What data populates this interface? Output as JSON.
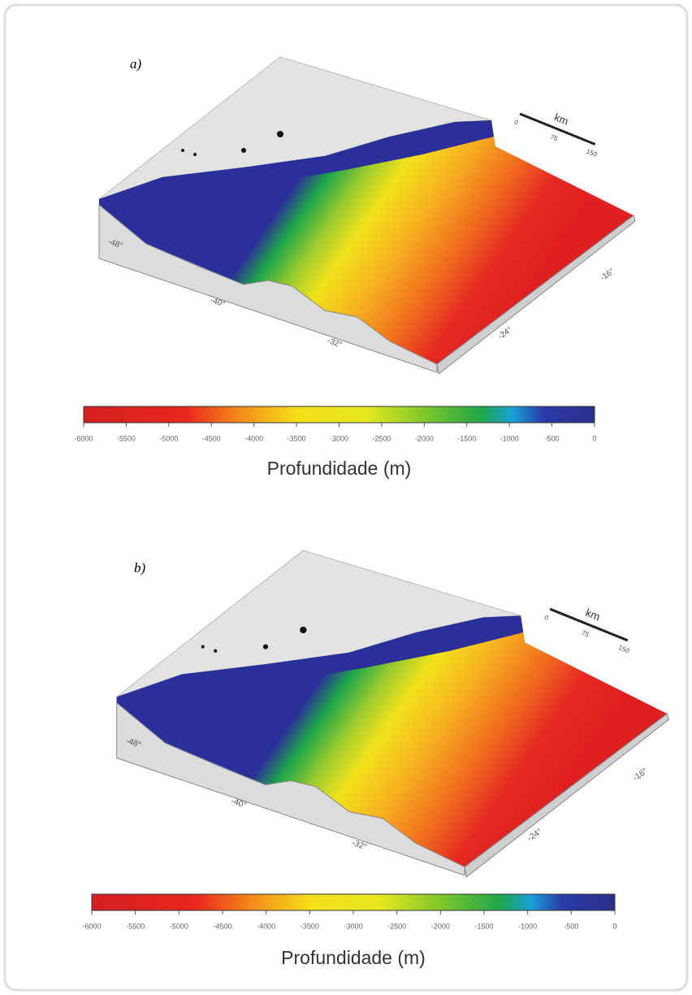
{
  "panels": [
    {
      "label": "a)",
      "scale_bar": {
        "unit": "km",
        "ticks": [
          0,
          75,
          150
        ]
      },
      "axis_labels": [
        "-48°",
        "-40°",
        "-32°",
        "-16°",
        "-24°"
      ],
      "colorbar": {
        "ticks": [
          -6000,
          -5500,
          -5000,
          -4500,
          -4000,
          -3500,
          -3000,
          -2500,
          -2000,
          -1500,
          -1000,
          -500,
          0
        ],
        "title": "Profundidade (m)"
      }
    },
    {
      "label": "b)",
      "scale_bar": {
        "unit": "km",
        "ticks": [
          0,
          75,
          150
        ]
      },
      "axis_labels": [
        "-48°",
        "-40°",
        "-32°",
        "-16°",
        "-24°"
      ],
      "colorbar": {
        "ticks": [
          -6000,
          -5500,
          -5000,
          -4500,
          -4000,
          -3500,
          -3000,
          -2500,
          -2000,
          -1500,
          -1000,
          -500,
          0
        ],
        "title": "Profundidade (m)"
      }
    }
  ]
}
